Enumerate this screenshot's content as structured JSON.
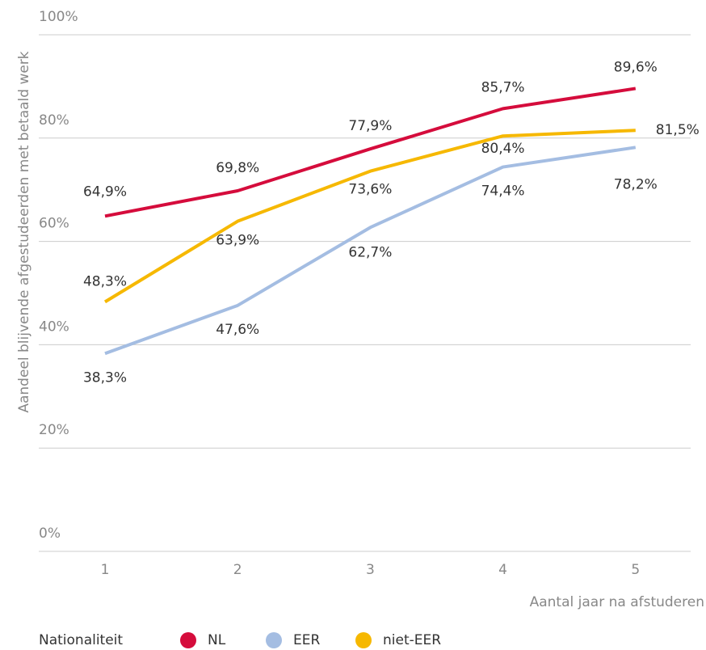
{
  "chart_data": {
    "type": "line",
    "y_label": "Aandeel blijvende afgestudeerden met betaald werk",
    "x_label": "Aantal jaar na afstuderen",
    "legend_title": "Nationaliteit",
    "categories": [
      "1",
      "2",
      "3",
      "4",
      "5"
    ],
    "series": [
      {
        "name": "NL",
        "color": "#d50c3c",
        "values": [
          64.9,
          69.8,
          77.9,
          85.7,
          89.6
        ],
        "value_labels": [
          "64,9%",
          "69,8%",
          "77,9%",
          "85,7%",
          "89,6%"
        ]
      },
      {
        "name": "EER",
        "color": "#a4bde2",
        "values": [
          38.3,
          47.6,
          62.7,
          74.4,
          78.2
        ],
        "value_labels": [
          "38,3%",
          "47,6%",
          "62,7%",
          "74,4%",
          "78,2%"
        ]
      },
      {
        "name": "niet-EER",
        "color": "#f6b800",
        "values": [
          48.3,
          63.9,
          73.6,
          80.4,
          81.5
        ],
        "value_labels": [
          "48,3%",
          "63,9%",
          "73,6%",
          "80,4%",
          "81,5%"
        ]
      }
    ],
    "ylim": [
      0,
      100
    ],
    "yticks": [
      {
        "value": 0,
        "label": "0%"
      },
      {
        "value": 20,
        "label": "20%"
      },
      {
        "value": 40,
        "label": "40%"
      },
      {
        "value": 60,
        "label": "60%"
      },
      {
        "value": 80,
        "label": "80%"
      },
      {
        "value": 100,
        "label": "100%"
      }
    ],
    "grid": true
  }
}
